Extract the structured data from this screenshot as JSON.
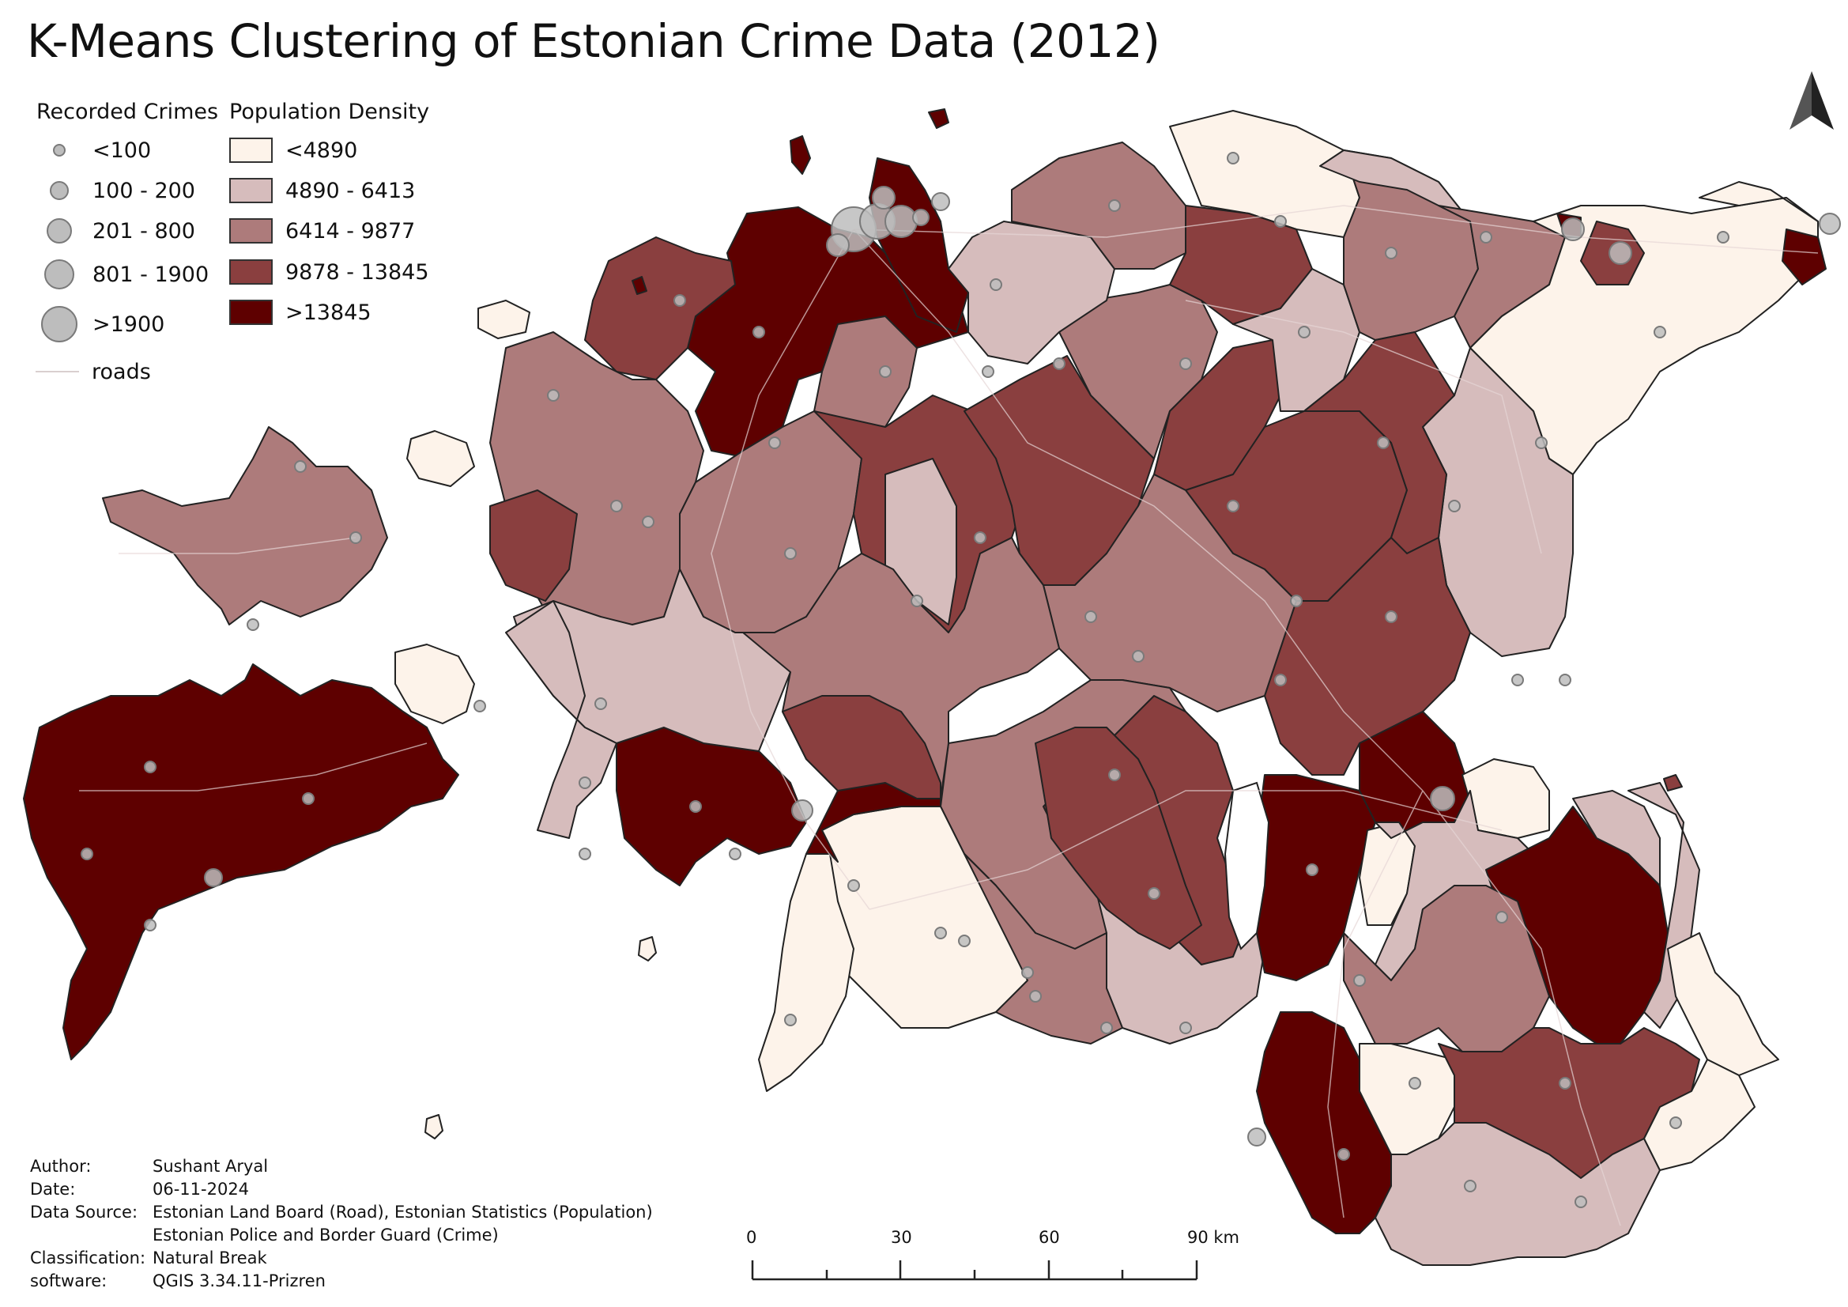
{
  "title": "K-Means Clustering of Estonian Crime Data (2012)",
  "legend_crimes": {
    "heading": "Recorded Crimes",
    "items": [
      {
        "label": "<100"
      },
      {
        "label": "100 - 200"
      },
      {
        "label": "201 - 800"
      },
      {
        "label": "801 - 1900"
      },
      {
        "label": ">1900"
      }
    ],
    "roads_label": "roads"
  },
  "legend_density": {
    "heading": "Population Density",
    "items": [
      {
        "label": "<4890",
        "color": "#fdf3ea"
      },
      {
        "label": "4890 - 6413",
        "color": "#d6bcbc"
      },
      {
        "label": "6414 - 9877",
        "color": "#ad7b7b"
      },
      {
        "label": "9878 - 13845",
        "color": "#8a3f3f"
      },
      {
        "label": ">13845",
        "color": "#5e0000"
      }
    ]
  },
  "scale_bar": {
    "labels": [
      "0",
      "30",
      "60",
      "90 km"
    ]
  },
  "metadata": [
    {
      "key": "Author:",
      "value": "Sushant Aryal"
    },
    {
      "key": "Date:",
      "value": "06-11-2024"
    },
    {
      "key": "Data Source:",
      "value": "Estonian Land Board (Road), Estonian Statistics (Population)"
    },
    {
      "key": "",
      "value": "Estonian Police and Border Guard (Crime)"
    },
    {
      "key": "Classification:",
      "value": "Natural Break"
    },
    {
      "key": "software:",
      "value": "QGIS 3.34.11-Prizren"
    }
  ]
}
